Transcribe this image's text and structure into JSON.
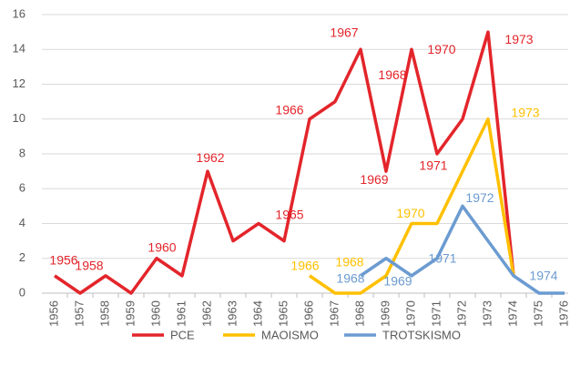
{
  "chart_data": {
    "type": "line",
    "categories": [
      "1956",
      "1957",
      "1958",
      "1959",
      "1960",
      "1961",
      "1962",
      "1963",
      "1964",
      "1965",
      "1966",
      "1967",
      "1968",
      "1969",
      "1970",
      "1971",
      "1972",
      "1973",
      "1974",
      "1975",
      "1976"
    ],
    "series": [
      {
        "name": "PCE",
        "color": "#e3252b",
        "values": [
          1,
          0,
          1,
          0,
          2,
          1,
          7,
          3,
          4,
          3,
          10,
          11,
          14,
          7,
          14,
          8,
          10,
          15,
          1,
          null,
          null
        ]
      },
      {
        "name": "MAOISMO",
        "color": "#ffc000",
        "values": [
          null,
          null,
          null,
          null,
          null,
          null,
          null,
          null,
          null,
          null,
          1,
          0,
          0,
          1,
          4,
          4,
          7,
          10,
          1,
          null,
          null
        ]
      },
      {
        "name": "TROTSKISMO",
        "color": "#6b9bd1",
        "values": [
          null,
          null,
          null,
          null,
          null,
          null,
          null,
          null,
          null,
          null,
          null,
          null,
          1,
          2,
          1,
          2,
          5,
          3,
          1,
          0,
          0
        ]
      }
    ],
    "annotations": [
      {
        "text": "1956",
        "series": 0
      },
      {
        "text": "1958",
        "series": 0
      },
      {
        "text": "1960",
        "series": 0
      },
      {
        "text": "1962",
        "series": 0
      },
      {
        "text": "1965",
        "series": 0
      },
      {
        "text": "1966",
        "series": 0
      },
      {
        "text": "1967",
        "series": 0
      },
      {
        "text": "1968",
        "series": 0
      },
      {
        "text": "1969",
        "series": 0
      },
      {
        "text": "1970",
        "series": 0
      },
      {
        "text": "1971",
        "series": 0
      },
      {
        "text": "1973",
        "series": 0
      },
      {
        "text": "1966",
        "series": 1
      },
      {
        "text": "1968",
        "series": 1
      },
      {
        "text": "1970",
        "series": 1
      },
      {
        "text": "1973",
        "series": 1
      },
      {
        "text": "1968",
        "series": 2
      },
      {
        "text": "1969",
        "series": 2
      },
      {
        "text": "1971",
        "series": 2
      },
      {
        "text": "1972",
        "series": 2
      },
      {
        "text": "1974",
        "series": 2
      }
    ],
    "ylim": [
      0,
      16
    ],
    "yticks": [
      0,
      2,
      4,
      6,
      8,
      10,
      12,
      14,
      16
    ],
    "grid": true,
    "legend": "bottom"
  }
}
